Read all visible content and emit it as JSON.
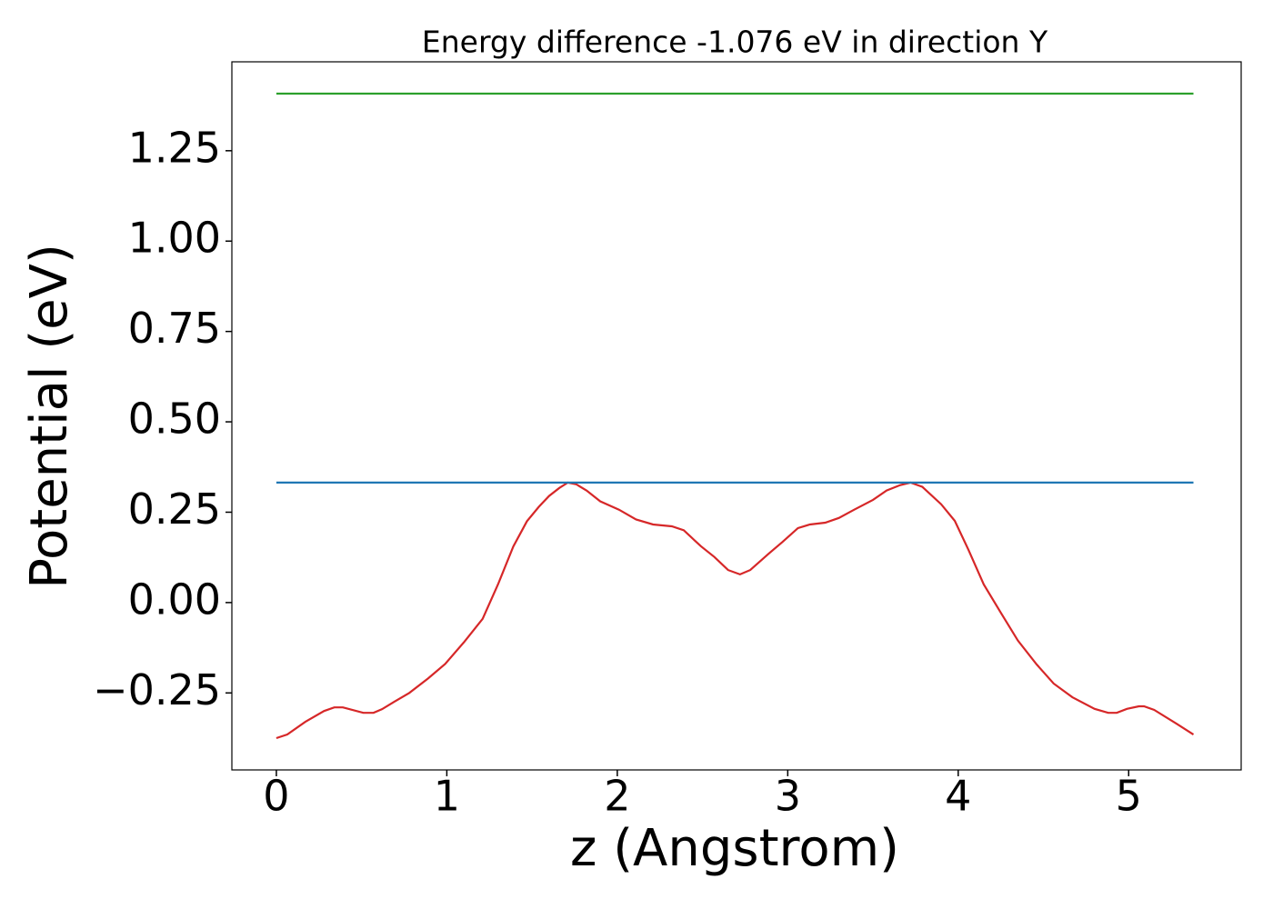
{
  "chart_data": {
    "type": "line",
    "title": "Energy difference -1.076 eV in direction Y",
    "xlabel": "z (Angstrom)",
    "ylabel": "Potential (eV)",
    "xlim": [
      -0.261,
      5.66
    ],
    "ylim": [
      -0.463,
      1.496
    ],
    "xticks": [
      0,
      1,
      2,
      3,
      4,
      5
    ],
    "yticks": [
      {
        "value": -0.25,
        "label": "−0.25"
      },
      {
        "value": 0,
        "label": "0.00"
      },
      0.25,
      {
        "value": 0.5,
        "label": "0.50"
      },
      0.75,
      {
        "value": 1,
        "label": "1.00"
      },
      1.25
    ],
    "grid": false,
    "series": [
      {
        "color": "#d62728",
        "x": [
          0,
          0.064,
          0.17,
          0.28,
          0.34,
          0.39,
          0.51,
          0.57,
          0.62,
          0.69,
          0.78,
          0.89,
          0.99,
          1.1,
          1.21,
          1.3,
          1.39,
          1.47,
          1.54,
          1.6,
          1.66,
          1.71,
          1.76,
          1.82,
          1.9,
          2.01,
          2.11,
          2.21,
          2.32,
          2.39,
          2.49,
          2.57,
          2.65,
          2.72,
          2.78,
          2.89,
          2.97,
          3.06,
          3.13,
          3.22,
          3.3,
          3.39,
          3.5,
          3.58,
          3.66,
          3.72,
          3.79,
          3.9,
          3.98,
          4.06,
          4.15,
          4.25,
          4.35,
          4.46,
          4.56,
          4.67,
          4.8,
          4.88,
          4.93,
          4.99,
          5.06,
          5.09,
          5.15,
          5.28,
          5.38
        ],
        "values": [
          -0.375,
          -0.365,
          -0.33,
          -0.3,
          -0.29,
          -0.29,
          -0.305,
          -0.305,
          -0.295,
          -0.275,
          -0.25,
          -0.21,
          -0.17,
          -0.11,
          -0.045,
          0.05,
          0.155,
          0.225,
          0.265,
          0.295,
          0.317,
          0.332,
          0.327,
          0.31,
          0.28,
          0.257,
          0.23,
          0.216,
          0.211,
          0.2,
          0.156,
          0.126,
          0.09,
          0.078,
          0.09,
          0.136,
          0.168,
          0.206,
          0.216,
          0.221,
          0.234,
          0.257,
          0.284,
          0.31,
          0.325,
          0.332,
          0.32,
          0.272,
          0.226,
          0.146,
          0.05,
          -0.028,
          -0.105,
          -0.171,
          -0.224,
          -0.262,
          -0.294,
          -0.305,
          -0.305,
          -0.294,
          -0.287,
          -0.287,
          -0.297,
          -0.335,
          -0.365
        ]
      },
      {
        "color": "#1f77b4",
        "x": [
          0,
          5.38
        ],
        "values": [
          0.332,
          0.332
        ]
      },
      {
        "color": "#2ca02c",
        "x": [
          0,
          5.38
        ],
        "values": [
          1.408,
          1.408
        ]
      }
    ]
  }
}
